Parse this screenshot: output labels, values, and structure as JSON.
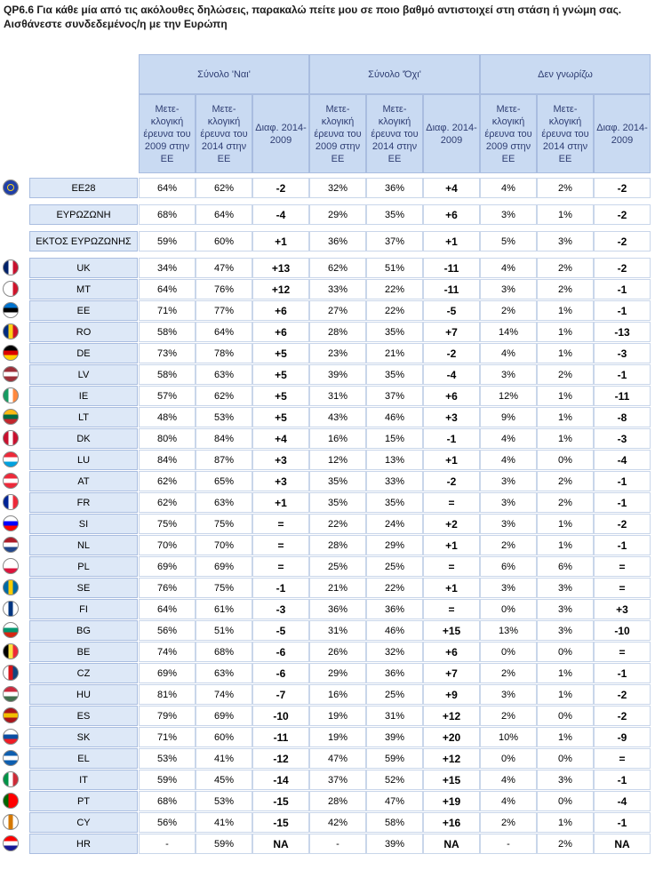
{
  "title": "QP6.6 Για κάθε μία από τις ακόλουθες δηλώσεις, παρακαλώ πείτε μου σε ποιο βαθμό αντιστοιχεί στη στάση ή γνώμη σας. Αισθάνεστε συνδεδεμένος/η με την Ευρώπη",
  "groups": [
    "Σύνολο 'Ναι'",
    "Σύνολο 'Όχι'",
    "Δεν γνωρίζω"
  ],
  "subheaders": [
    "Μετε-κλογική έρευνα του 2009 στην ΕΕ",
    "Μετε-κλογική έρευνα του 2014 στην ΕΕ",
    "Διαφ. 2014-2009"
  ],
  "rows": [
    {
      "label": "EE28",
      "flag": "eu",
      "v": [
        "64%",
        "62%",
        "-2",
        "32%",
        "36%",
        "+4",
        "4%",
        "2%",
        "-2"
      ]
    },
    {
      "label": "ΕΥΡΩΖΩΝΗ",
      "flag": "",
      "v": [
        "68%",
        "64%",
        "-4",
        "29%",
        "35%",
        "+6",
        "3%",
        "1%",
        "-2"
      ]
    },
    {
      "label": "ΕΚΤΟΣ ΕΥΡΩΖΩΝΗΣ",
      "flag": "",
      "v": [
        "59%",
        "60%",
        "+1",
        "36%",
        "37%",
        "+1",
        "5%",
        "3%",
        "-2"
      ]
    },
    {
      "label": "UK",
      "flag": "uk",
      "v": [
        "34%",
        "47%",
        "+13",
        "62%",
        "51%",
        "-11",
        "4%",
        "2%",
        "-2"
      ]
    },
    {
      "label": "MT",
      "flag": "mt",
      "v": [
        "64%",
        "76%",
        "+12",
        "33%",
        "22%",
        "-11",
        "3%",
        "2%",
        "-1"
      ]
    },
    {
      "label": "EE",
      "flag": "ee",
      "v": [
        "71%",
        "77%",
        "+6",
        "27%",
        "22%",
        "-5",
        "2%",
        "1%",
        "-1"
      ]
    },
    {
      "label": "RO",
      "flag": "ro",
      "v": [
        "58%",
        "64%",
        "+6",
        "28%",
        "35%",
        "+7",
        "14%",
        "1%",
        "-13"
      ]
    },
    {
      "label": "DE",
      "flag": "de",
      "v": [
        "73%",
        "78%",
        "+5",
        "23%",
        "21%",
        "-2",
        "4%",
        "1%",
        "-3"
      ]
    },
    {
      "label": "LV",
      "flag": "lv",
      "v": [
        "58%",
        "63%",
        "+5",
        "39%",
        "35%",
        "-4",
        "3%",
        "2%",
        "-1"
      ]
    },
    {
      "label": "IE",
      "flag": "ie",
      "v": [
        "57%",
        "62%",
        "+5",
        "31%",
        "37%",
        "+6",
        "12%",
        "1%",
        "-11"
      ]
    },
    {
      "label": "LT",
      "flag": "lt",
      "v": [
        "48%",
        "53%",
        "+5",
        "43%",
        "46%",
        "+3",
        "9%",
        "1%",
        "-8"
      ]
    },
    {
      "label": "DK",
      "flag": "dk",
      "v": [
        "80%",
        "84%",
        "+4",
        "16%",
        "15%",
        "-1",
        "4%",
        "1%",
        "-3"
      ]
    },
    {
      "label": "LU",
      "flag": "lu",
      "v": [
        "84%",
        "87%",
        "+3",
        "12%",
        "13%",
        "+1",
        "4%",
        "0%",
        "-4"
      ]
    },
    {
      "label": "AT",
      "flag": "at",
      "v": [
        "62%",
        "65%",
        "+3",
        "35%",
        "33%",
        "-2",
        "3%",
        "2%",
        "-1"
      ]
    },
    {
      "label": "FR",
      "flag": "fr",
      "v": [
        "62%",
        "63%",
        "+1",
        "35%",
        "35%",
        "=",
        "3%",
        "2%",
        "-1"
      ]
    },
    {
      "label": "SI",
      "flag": "si",
      "v": [
        "75%",
        "75%",
        "=",
        "22%",
        "24%",
        "+2",
        "3%",
        "1%",
        "-2"
      ]
    },
    {
      "label": "NL",
      "flag": "nl",
      "v": [
        "70%",
        "70%",
        "=",
        "28%",
        "29%",
        "+1",
        "2%",
        "1%",
        "-1"
      ]
    },
    {
      "label": "PL",
      "flag": "pl",
      "v": [
        "69%",
        "69%",
        "=",
        "25%",
        "25%",
        "=",
        "6%",
        "6%",
        "="
      ]
    },
    {
      "label": "SE",
      "flag": "se",
      "v": [
        "76%",
        "75%",
        "-1",
        "21%",
        "22%",
        "+1",
        "3%",
        "3%",
        "="
      ]
    },
    {
      "label": "FI",
      "flag": "fi",
      "v": [
        "64%",
        "61%",
        "-3",
        "36%",
        "36%",
        "=",
        "0%",
        "3%",
        "+3"
      ]
    },
    {
      "label": "BG",
      "flag": "bg",
      "v": [
        "56%",
        "51%",
        "-5",
        "31%",
        "46%",
        "+15",
        "13%",
        "3%",
        "-10"
      ]
    },
    {
      "label": "BE",
      "flag": "be",
      "v": [
        "74%",
        "68%",
        "-6",
        "26%",
        "32%",
        "+6",
        "0%",
        "0%",
        "="
      ]
    },
    {
      "label": "CZ",
      "flag": "cz",
      "v": [
        "69%",
        "63%",
        "-6",
        "29%",
        "36%",
        "+7",
        "2%",
        "1%",
        "-1"
      ]
    },
    {
      "label": "HU",
      "flag": "hu",
      "v": [
        "81%",
        "74%",
        "-7",
        "16%",
        "25%",
        "+9",
        "3%",
        "1%",
        "-2"
      ]
    },
    {
      "label": "ES",
      "flag": "es",
      "v": [
        "79%",
        "69%",
        "-10",
        "19%",
        "31%",
        "+12",
        "2%",
        "0%",
        "-2"
      ]
    },
    {
      "label": "SK",
      "flag": "sk",
      "v": [
        "71%",
        "60%",
        "-11",
        "19%",
        "39%",
        "+20",
        "10%",
        "1%",
        "-9"
      ]
    },
    {
      "label": "EL",
      "flag": "el",
      "v": [
        "53%",
        "41%",
        "-12",
        "47%",
        "59%",
        "+12",
        "0%",
        "0%",
        "="
      ]
    },
    {
      "label": "IT",
      "flag": "it",
      "v": [
        "59%",
        "45%",
        "-14",
        "37%",
        "52%",
        "+15",
        "4%",
        "3%",
        "-1"
      ]
    },
    {
      "label": "PT",
      "flag": "pt",
      "v": [
        "68%",
        "53%",
        "-15",
        "28%",
        "47%",
        "+19",
        "4%",
        "0%",
        "-4"
      ]
    },
    {
      "label": "CY",
      "flag": "cy",
      "v": [
        "56%",
        "41%",
        "-15",
        "42%",
        "58%",
        "+16",
        "2%",
        "1%",
        "-1"
      ]
    },
    {
      "label": "HR",
      "flag": "hr",
      "v": [
        "-",
        "59%",
        "NA",
        "-",
        "39%",
        "NA",
        "-",
        "2%",
        "NA"
      ]
    }
  ],
  "flag_colors": {
    "eu": [
      "#1f3fa8",
      "#1f3fa8",
      "#1f3fa8"
    ],
    "uk": [
      "#012169",
      "#ffffff",
      "#c8102e"
    ],
    "mt": [
      "#ffffff",
      "#ffffff",
      "#cf142b"
    ],
    "ee": [
      "#0072ce",
      "#000000",
      "#ffffff"
    ],
    "ro": [
      "#002b7f",
      "#fcd116",
      "#ce1126"
    ],
    "de": [
      "#000000",
      "#dd0000",
      "#ffce00"
    ],
    "lv": [
      "#9e3039",
      "#ffffff",
      "#9e3039"
    ],
    "ie": [
      "#169b62",
      "#ffffff",
      "#ff883e"
    ],
    "lt": [
      "#fdb913",
      "#006a44",
      "#c1272d"
    ],
    "dk": [
      "#c8102e",
      "#ffffff",
      "#c8102e"
    ],
    "lu": [
      "#ed2939",
      "#ffffff",
      "#00a1de"
    ],
    "at": [
      "#ed2939",
      "#ffffff",
      "#ed2939"
    ],
    "fr": [
      "#002395",
      "#ffffff",
      "#ed2939"
    ],
    "si": [
      "#ffffff",
      "#0000ff",
      "#ff0000"
    ],
    "nl": [
      "#ae1c28",
      "#ffffff",
      "#21468b"
    ],
    "pl": [
      "#ffffff",
      "#ffffff",
      "#dc143c"
    ],
    "se": [
      "#006aa7",
      "#fecc00",
      "#006aa7"
    ],
    "fi": [
      "#ffffff",
      "#003580",
      "#ffffff"
    ],
    "bg": [
      "#ffffff",
      "#00966e",
      "#d62612"
    ],
    "be": [
      "#000000",
      "#fae042",
      "#ed2939"
    ],
    "cz": [
      "#ffffff",
      "#d7141a",
      "#11457e"
    ],
    "hu": [
      "#cd2a3e",
      "#ffffff",
      "#436f4d"
    ],
    "es": [
      "#aa151b",
      "#f1bf00",
      "#aa151b"
    ],
    "sk": [
      "#ffffff",
      "#0b4ea2",
      "#ee1c25"
    ],
    "el": [
      "#0d5eaf",
      "#ffffff",
      "#0d5eaf"
    ],
    "it": [
      "#009246",
      "#ffffff",
      "#ce2b37"
    ],
    "pt": [
      "#006600",
      "#ff0000",
      "#ff0000"
    ],
    "cy": [
      "#ffffff",
      "#d57800",
      "#ffffff"
    ],
    "hr": [
      "#ff0000",
      "#ffffff",
      "#171796"
    ]
  }
}
